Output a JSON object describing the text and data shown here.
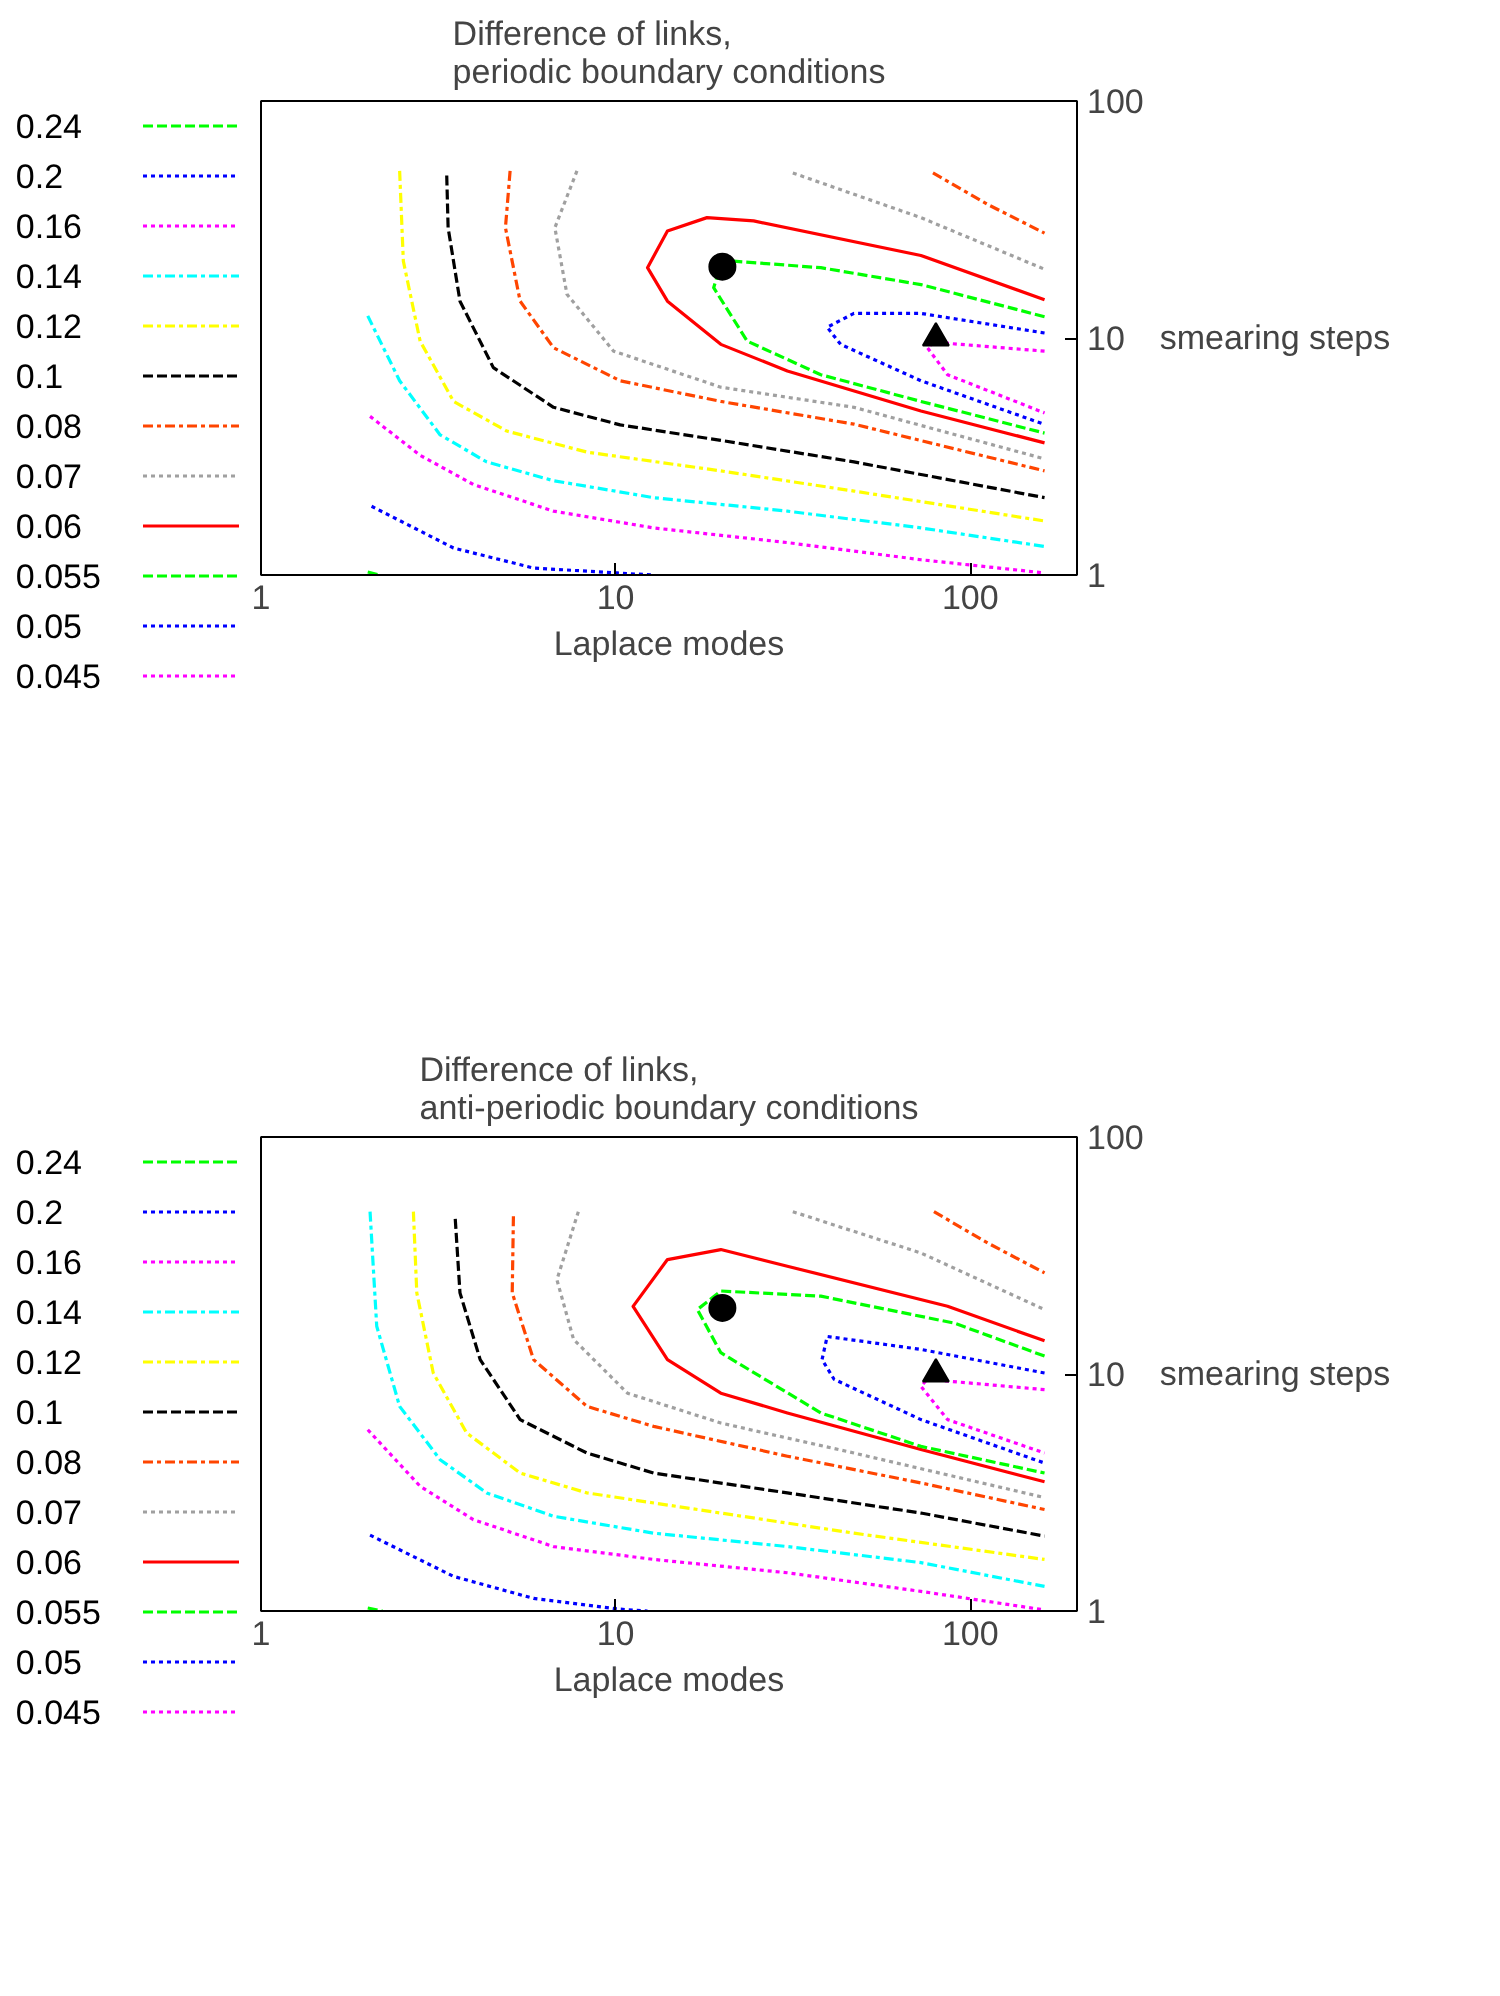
{
  "chart_data": [
    {
      "type": "line",
      "title": "Difference of links,\nperiodic boundary conditions",
      "xlabel": "Laplace modes",
      "ylabel": "smearing steps",
      "log": "xy",
      "xlim": [
        1,
        200
      ],
      "ylim": [
        1,
        100
      ],
      "xticks": [
        1,
        10,
        100
      ],
      "yticks": [
        1,
        10,
        100
      ],
      "legend": "left",
      "series": [
        {
          "name": "0.24",
          "color": "#00ff00",
          "line_style": "dashed",
          "x": [
            2.0,
            2.16
          ],
          "values": [
            1.03,
            1.0
          ]
        },
        {
          "name": "0.2",
          "color": "#0000ff",
          "line_style": "dotted",
          "x": [
            2.05,
            3.49,
            5.87,
            10.1,
            12.7
          ],
          "values": [
            1.95,
            1.3,
            1.07,
            1.02,
            1.0
          ]
        },
        {
          "name": "0.16",
          "color": "#ff00ff",
          "line_style": "dotted",
          "x": [
            2.03,
            2.81,
            3.97,
            6.68,
            12.8,
            30.5,
            72.6,
            162
          ],
          "values": [
            4.67,
            3.2,
            2.41,
            1.86,
            1.58,
            1.37,
            1.16,
            1.02
          ]
        },
        {
          "name": "0.14",
          "color": "#00ffff",
          "line_style": "dashdot",
          "x": [
            2.0,
            2.46,
            3.2,
            4.33,
            6.68,
            12.8,
            30.5,
            72.6,
            162
          ],
          "values": [
            12.4,
            6.6,
            3.9,
            3.0,
            2.5,
            2.12,
            1.86,
            1.58,
            1.32
          ]
        },
        {
          "name": "0.12",
          "color": "#ffff00",
          "line_style": "dashdot",
          "x": [
            2.46,
            2.52,
            2.81,
            3.49,
            4.93,
            8.3,
            19.8,
            47,
            162
          ],
          "values": [
            50.7,
            21.1,
            9.7,
            5.4,
            4.05,
            3.3,
            2.75,
            2.26,
            1.69
          ]
        },
        {
          "name": "0.1",
          "color": "#000000",
          "line_style": "dashed",
          "x": [
            3.34,
            3.37,
            3.64,
            4.52,
            6.68,
            10.3,
            19.8,
            47,
            162
          ],
          "values": [
            48.5,
            29.2,
            14.3,
            7.5,
            5.1,
            4.3,
            3.7,
            3.0,
            2.12
          ]
        },
        {
          "name": "0.08",
          "color": "#ff4500",
          "line_style": "dashdot",
          "x": [
            5.04,
            4.89,
            5.38,
            6.68,
            10.3,
            19.8,
            47,
            162,
            null,
            78.5,
            112,
            162
          ],
          "values": [
            50.7,
            29.2,
            14.3,
            9.1,
            6.6,
            5.4,
            4.33,
            2.75,
            null,
            49.7,
            36.6,
            27.7
          ]
        },
        {
          "name": "0.07",
          "color": "#a0a0a0",
          "line_style": "dotted",
          "x": [
            7.78,
            6.74,
            7.29,
            9.87,
            19.8,
            47,
            162,
            null,
            31.6,
            72.6,
            162
          ],
          "values": [
            50.7,
            29.2,
            15.3,
            8.8,
            6.2,
            5.1,
            3.09,
            null,
            49.7,
            32.2,
            19.5
          ]
        },
        {
          "name": "0.06",
          "color": "#ff0000",
          "line_style": "solid",
          "x": [
            162,
            72.6,
            24.5,
            18.1,
            14.0,
            12.3,
            14.0,
            19.8,
            30.5,
            72.6,
            162
          ],
          "values": [
            14.5,
            22.3,
            31.2,
            32.2,
            28.3,
            19.8,
            14.3,
            9.4,
            7.26,
            4.92,
            3.61
          ]
        },
        {
          "name": "0.055",
          "color": "#00ff00",
          "line_style": "dashed",
          "x": [
            162,
            72.6,
            37.9,
            21.5,
            19.8,
            18.9,
            23.5,
            37.9,
            72.6,
            162
          ],
          "values": [
            12.3,
            16.8,
            19.8,
            21.1,
            20.5,
            16.3,
            9.7,
            7.0,
            5.4,
            3.97
          ]
        },
        {
          "name": "0.05",
          "color": "#0000ff",
          "line_style": "dotted",
          "x": [
            162,
            72.6,
            47,
            39.5,
            43.1,
            72.6,
            162
          ],
          "values": [
            10.5,
            12.7,
            12.7,
            11.1,
            9.4,
            6.6,
            4.32
          ]
        },
        {
          "name": "0.045",
          "color": "#ff00ff",
          "line_style": "dotted",
          "x": [
            162,
            79,
            75.7,
            86.3,
            162
          ],
          "values": [
            8.8,
            9.6,
            9.1,
            7.0,
            4.83
          ]
        },
        {
          "type": "scatter",
          "marker": "circle",
          "color": "#000000",
          "x": [
            20
          ],
          "values": [
            20
          ]
        },
        {
          "type": "scatter",
          "marker": "triangle",
          "color": "#000000",
          "x": [
            80
          ],
          "values": [
            10
          ]
        }
      ]
    },
    {
      "type": "line",
      "title": "Difference of links,\nanti-periodic boundary conditions",
      "xlabel": "Laplace modes",
      "ylabel": "smearing steps",
      "log": "xy",
      "xlim": [
        1,
        200
      ],
      "ylim": [
        1,
        100
      ],
      "xticks": [
        1,
        10,
        100
      ],
      "yticks": [
        1,
        10,
        100
      ],
      "legend": "left",
      "series": [
        {
          "name": "0.24",
          "color": "#00ff00",
          "line_style": "dashed",
          "x": [
            2.0,
            2.2
          ],
          "values": [
            1.03,
            1.0
          ]
        },
        {
          "name": "0.2",
          "color": "#0000ff",
          "line_style": "dotted",
          "x": [
            2.03,
            3.49,
            5.87,
            10.1,
            12.3
          ],
          "values": [
            2.09,
            1.4,
            1.13,
            1.02,
            1.0
          ]
        },
        {
          "name": "0.16",
          "color": "#ff00ff",
          "line_style": "dotted",
          "x": [
            2.0,
            2.81,
            3.97,
            6.68,
            12.8,
            30.5,
            72.6,
            162
          ],
          "values": [
            5.82,
            3.36,
            2.43,
            1.87,
            1.65,
            1.45,
            1.21,
            1.01
          ]
        },
        {
          "name": "0.14",
          "color": "#00ffff",
          "line_style": "dashdot",
          "x": [
            2.03,
            2.12,
            2.46,
            3.2,
            4.33,
            6.68,
            12.8,
            30.5,
            72.6,
            162
          ],
          "values": [
            48.4,
            15.9,
            7.3,
            4.35,
            3.15,
            2.51,
            2.13,
            1.87,
            1.6,
            1.27
          ]
        },
        {
          "name": "0.12",
          "color": "#ffff00",
          "line_style": "dashdot",
          "x": [
            2.69,
            2.75,
            3.06,
            3.8,
            5.38,
            8.3,
            19.8,
            47,
            162
          ],
          "values": [
            48.4,
            22.0,
            10.1,
            5.64,
            3.82,
            3.15,
            2.59,
            2.13,
            1.65
          ]
        },
        {
          "name": "0.1",
          "color": "#000000",
          "line_style": "dashed",
          "x": [
            3.53,
            3.64,
            4.15,
            5.38,
            8.3,
            12.8,
            30.5,
            72.6,
            162
          ],
          "values": [
            45.1,
            22.0,
            11.5,
            6.42,
            4.64,
            3.82,
            3.15,
            2.59,
            2.07
          ]
        },
        {
          "name": "0.08",
          "color": "#ff4500",
          "line_style": "dashdot",
          "x": [
            5.15,
            5.11,
            5.87,
            8.3,
            12.8,
            30.5,
            72.6,
            162,
            null,
            79,
            112,
            162
          ],
          "values": [
            46.3,
            22.0,
            11.5,
            7.3,
            6.01,
            4.5,
            3.47,
            2.68,
            null,
            48.4,
            35.7,
            26.7
          ]
        },
        {
          "name": "0.07",
          "color": "#a0a0a0",
          "line_style": "dotted",
          "x": [
            7.85,
            6.83,
            7.61,
            10.8,
            19.8,
            47,
            162,
            null,
            31.6,
            72.6,
            162
          ],
          "values": [
            48.4,
            25.0,
            14.0,
            8.3,
            6.21,
            4.64,
            3.01,
            null,
            48.4,
            32.4,
            18.7
          ]
        },
        {
          "name": "0.06",
          "color": "#ff0000",
          "line_style": "solid",
          "x": [
            162,
            86.3,
            30.5,
            19.8,
            14.0,
            11.2,
            14.0,
            19.8,
            30.5,
            72.6,
            162
          ],
          "values": [
            13.8,
            19.3,
            28.5,
            33.5,
            30.4,
            19.3,
            11.5,
            8.3,
            6.85,
            4.8,
            3.51
          ]
        },
        {
          "name": "0.055",
          "color": "#00ff00",
          "line_style": "dashed",
          "x": [
            162,
            90.1,
            37.9,
            19.8,
            17.0,
            19.8,
            37.9,
            72.6,
            162
          ],
          "values": [
            11.9,
            16.4,
            21.3,
            22.4,
            18.7,
            12.3,
            6.85,
            4.95,
            3.82
          ]
        },
        {
          "name": "0.05",
          "color": "#0000ff",
          "line_style": "dotted",
          "x": [
            162,
            72.6,
            39.5,
            38.2,
            41.3,
            72.6,
            162
          ],
          "values": [
            10.1,
            12.7,
            14.4,
            11.5,
            9.5,
            6.42,
            4.21
          ]
        },
        {
          "name": "0.045",
          "color": "#ff00ff",
          "line_style": "dotted",
          "x": [
            162,
            75.7,
            72.6,
            86.3,
            162
          ],
          "values": [
            8.59,
            9.5,
            8.87,
            6.42,
            4.64
          ]
        },
        {
          "type": "scatter",
          "marker": "circle",
          "color": "#000000",
          "x": [
            20
          ],
          "values": [
            19
          ]
        },
        {
          "type": "scatter",
          "marker": "triangle",
          "color": "#000000",
          "x": [
            80
          ],
          "values": [
            10
          ]
        }
      ]
    }
  ]
}
